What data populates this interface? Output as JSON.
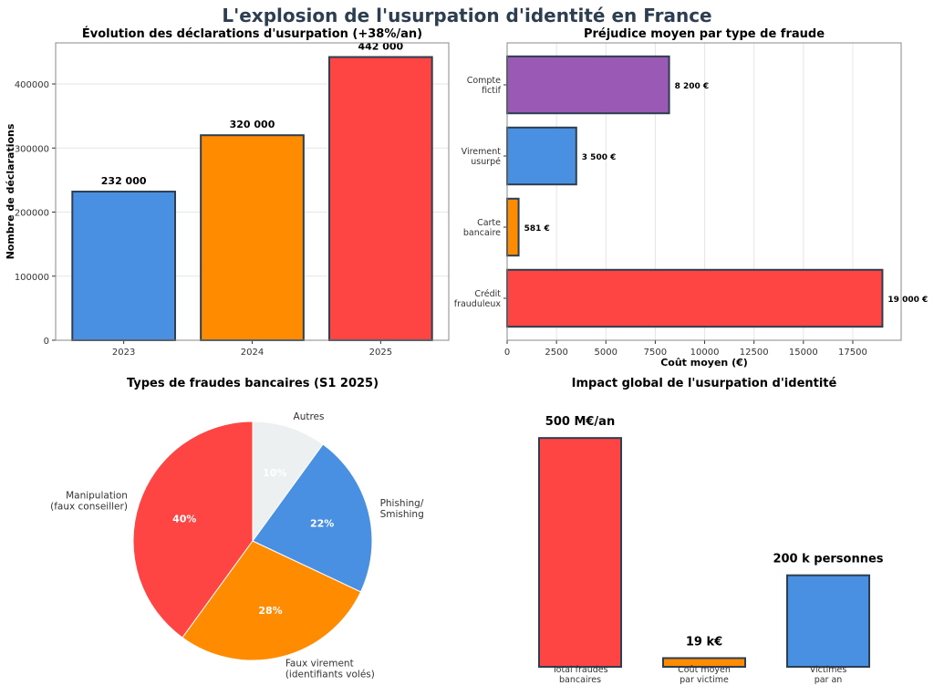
{
  "title": "L'explosion de l'usurpation d'identité en France",
  "colors": {
    "title": "#2C3E50",
    "edge": "#2C3E50",
    "grid": "#e6e6e6"
  },
  "chart_data": [
    {
      "type": "bar",
      "title": "Évolution des déclarations d'usurpation (+38%/an)",
      "xlabel": "",
      "ylabel": "Nombre de déclarations",
      "categories": [
        "2023",
        "2024",
        "2025"
      ],
      "values": [
        232000,
        320000,
        442000
      ],
      "data_labels": [
        "232 000",
        "320 000",
        "442 000"
      ],
      "colors": [
        "#4A90E2",
        "#FF8C00",
        "#FF4444"
      ],
      "ylim": [
        0,
        464100
      ],
      "yticks": [
        0,
        100000,
        200000,
        300000,
        400000
      ],
      "ytick_labels": [
        "0",
        "100000",
        "200000",
        "300000",
        "400000"
      ],
      "grid": "y"
    },
    {
      "type": "barh",
      "title": "Préjudice moyen par type de fraude",
      "xlabel": "Coût moyen (€)",
      "ylabel": "",
      "categories": [
        [
          "Crédit",
          "frauduleux"
        ],
        [
          "Carte",
          "bancaire"
        ],
        [
          "Virement",
          "usurpé"
        ],
        [
          "Compte",
          "fictif"
        ]
      ],
      "values": [
        19000,
        581,
        3500,
        8200
      ],
      "data_labels": [
        "19 000 €",
        "581 €",
        "3 500 €",
        "8 200 €"
      ],
      "colors": [
        "#FF4444",
        "#FF8C00",
        "#4A90E2",
        "#9B59B6"
      ],
      "xlim": [
        0,
        19950
      ],
      "xticks": [
        0,
        2500,
        5000,
        7500,
        10000,
        12500,
        15000,
        17500
      ],
      "xtick_labels": [
        "0",
        "2500",
        "5000",
        "7500",
        "10000",
        "12500",
        "15000",
        "17500"
      ],
      "grid": "x"
    },
    {
      "type": "pie",
      "title": "Types de fraudes bancaires (S1 2025)",
      "labels": [
        [
          "Manipulation",
          "(faux conseiller)"
        ],
        [
          "Faux virement",
          "(identifiants volés)"
        ],
        [
          "Phishing/",
          "Smishing"
        ],
        [
          "Autres"
        ]
      ],
      "values": [
        40,
        28,
        22,
        10
      ],
      "pct_labels": [
        "40%",
        "28%",
        "22%",
        "10%"
      ],
      "colors": [
        "#FF4444",
        "#FF8C00",
        "#4A90E2",
        "#ECF0F1"
      ],
      "start_angle": 90
    },
    {
      "type": "bar",
      "title": "Impact global de l'usurpation d'identité",
      "categories": [
        [
          "Total fraudes",
          "bancaires"
        ],
        [
          "Coût moyen",
          "par victime"
        ],
        [
          "Victimes",
          "par an"
        ]
      ],
      "values": [
        500,
        19,
        200
      ],
      "data_labels": [
        "500 M€/an",
        "19 k€",
        "200 k personnes"
      ],
      "colors": [
        "#FF4444",
        "#FF8C00",
        "#4A90E2"
      ],
      "ylim": [
        0,
        600
      ],
      "axis": "off"
    }
  ]
}
